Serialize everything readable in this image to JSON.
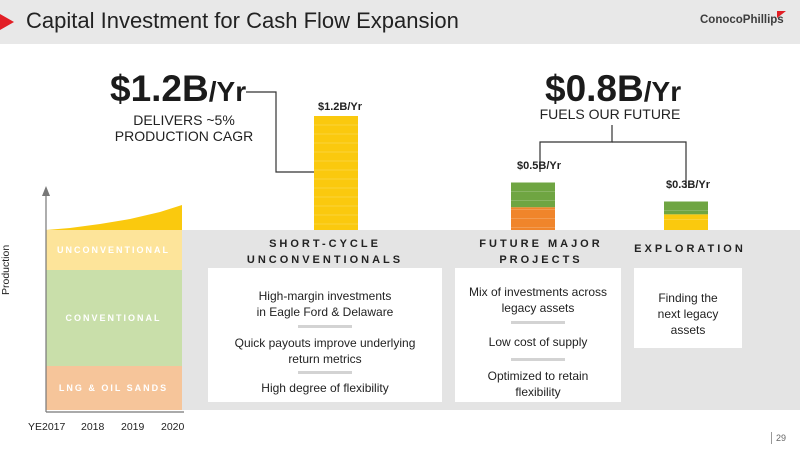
{
  "header": {
    "title": "Capital Investment for Cash Flow Expansion",
    "logo_text": "ConocoPhillips"
  },
  "left_callout": {
    "amount": "$1.2B",
    "unit": "/Yr",
    "line1": "DELIVERS ~5%",
    "line2": "PRODUCTION CAGR"
  },
  "right_callout": {
    "amount": "$0.8B",
    "unit": "/Yr",
    "line1": "FUELS OUR FUTURE"
  },
  "chart_data": [
    {
      "type": "bar",
      "categories": [
        "SHORT-CYCLE UNCONVENTIONALS",
        "FUTURE MAJOR PROJECTS",
        "EXPLORATION"
      ],
      "values": [
        1.2,
        0.5,
        0.3
      ],
      "data_labels": [
        "$1.2B/Yr",
        "$0.5B/Yr",
        "$0.3B/Yr"
      ],
      "colors": [
        "#fac90e",
        "#f0852b",
        "#fac90e"
      ],
      "secondary_colors": [
        "#fac90e",
        "#6fa542",
        "#6fa542"
      ]
    },
    {
      "type": "area",
      "ylabel": "Production",
      "x": [
        "YE2017",
        "2018",
        "2019",
        "2020"
      ],
      "series": [
        {
          "name": "LNG & OIL SANDS",
          "color": "#f6c59a"
        },
        {
          "name": "CONVENTIONAL",
          "color": "#c9dfaa"
        },
        {
          "name": "UNCONVENTIONAL",
          "color": "#fde49a"
        }
      ],
      "growth_color": "#fac90e"
    }
  ],
  "sections": [
    {
      "title_line1": "SHORT-CYCLE",
      "title_line2": "UNCONVENTIONALS",
      "items": [
        {
          "line1": "High-margin investments",
          "line2": "in Eagle Ford & Delaware"
        },
        {
          "line1": "Quick payouts improve underlying",
          "line2": "return metrics"
        },
        {
          "line1": "High degree of flexibility",
          "line2": ""
        }
      ]
    },
    {
      "title_line1": "FUTURE MAJOR",
      "title_line2": "PROJECTS",
      "items": [
        {
          "line1": "Mix of investments across",
          "line2": "legacy assets"
        },
        {
          "line1": "Low cost of supply",
          "line2": ""
        },
        {
          "line1": "Optimized to retain",
          "line2": "flexibility"
        }
      ]
    },
    {
      "title_line1": "EXPLORATION",
      "title_line2": "",
      "items": [
        {
          "line1": "Finding the",
          "line2": "next legacy",
          "line3": "assets"
        }
      ]
    }
  ],
  "footer": {
    "page_number": "29"
  }
}
